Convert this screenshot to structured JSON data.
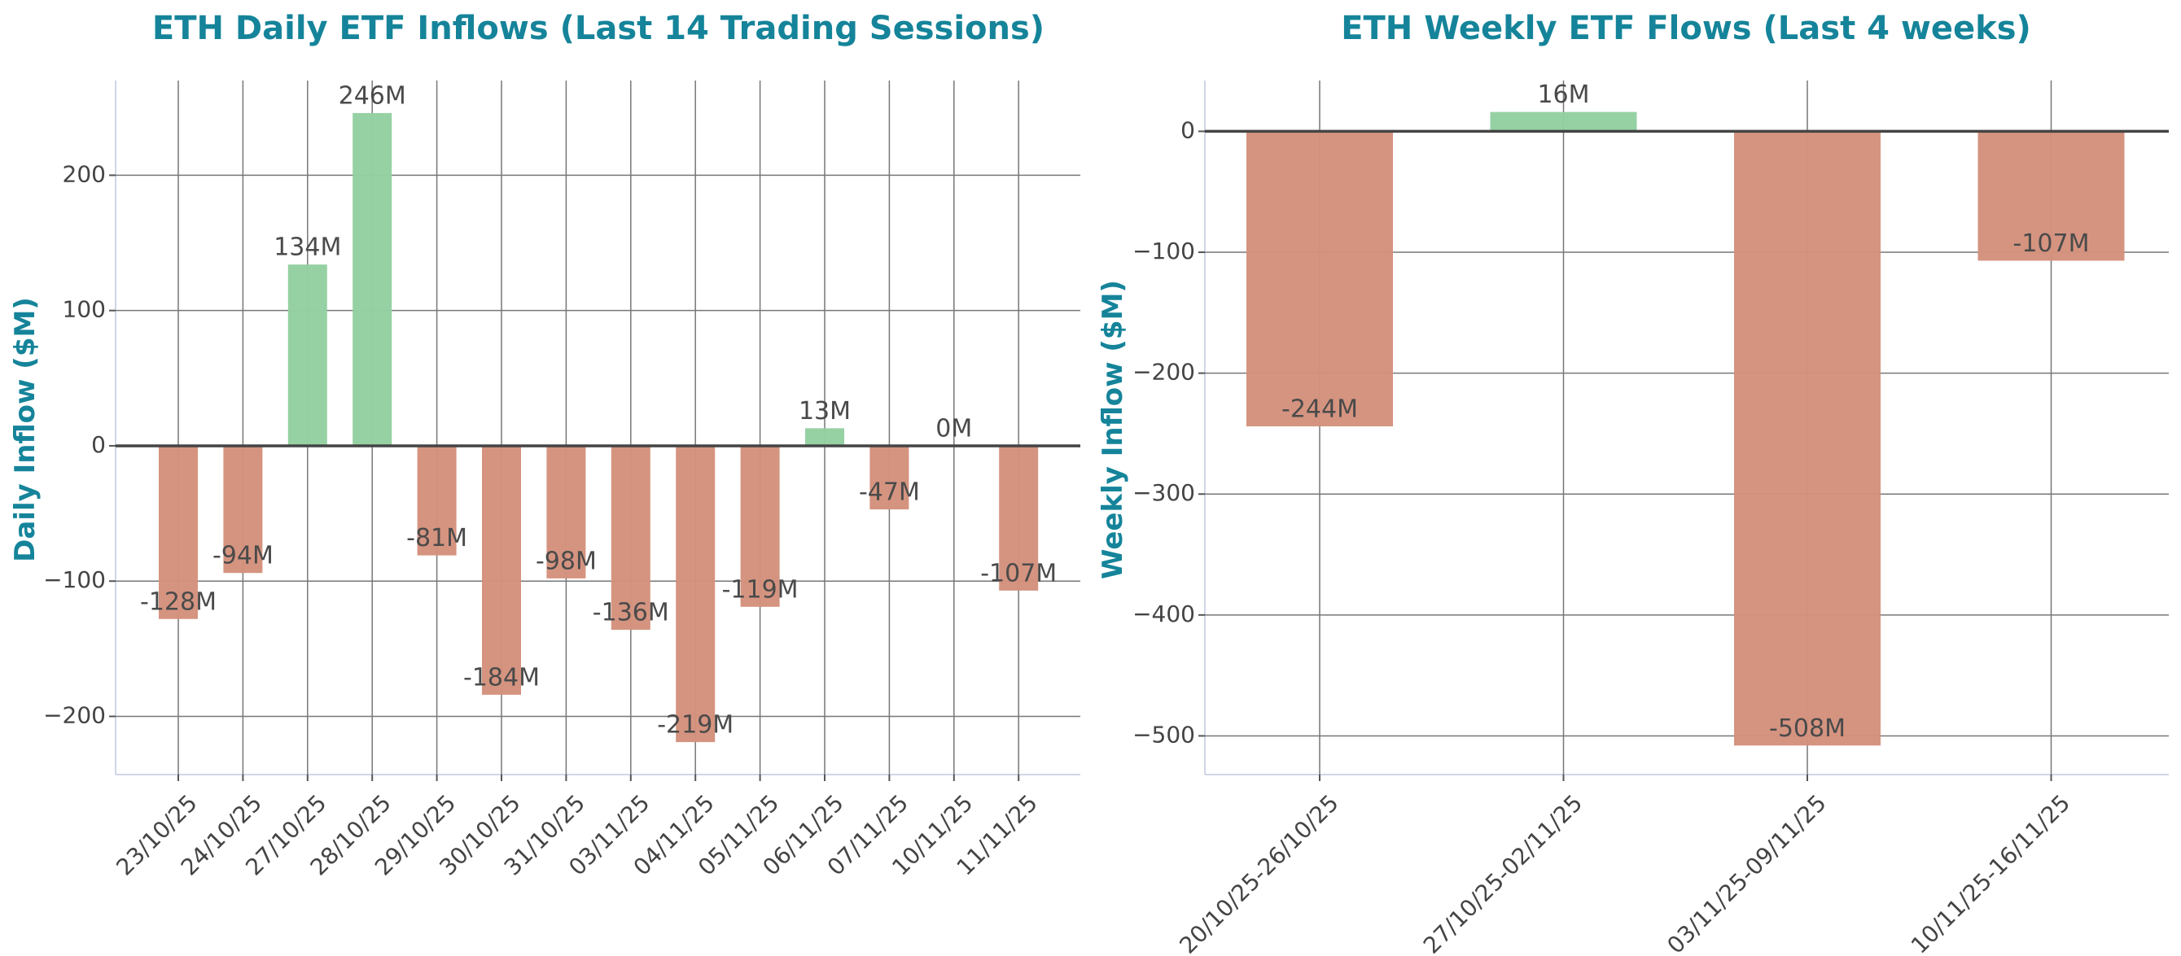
{
  "colors": {
    "title": "#15849a",
    "positive": "#93cfa1",
    "negative": "#d4917c",
    "grid": "#777777",
    "text": "#444444"
  },
  "chart_data": [
    {
      "type": "bar",
      "title": "ETH Daily ETF Inflows (Last 14 Trading Sessions)",
      "xlabel": "",
      "ylabel": "Daily Inflow ($M)",
      "categories": [
        "23/10/25",
        "24/10/25",
        "27/10/25",
        "28/10/25",
        "29/10/25",
        "30/10/25",
        "31/10/25",
        "03/11/25",
        "04/11/25",
        "05/11/25",
        "06/11/25",
        "07/11/25",
        "10/11/25",
        "11/11/25"
      ],
      "values": [
        -128,
        -94,
        134,
        246,
        -81,
        -184,
        -98,
        -136,
        -219,
        -119,
        13,
        -47,
        0,
        -107
      ],
      "data_labels": [
        "-128M",
        "-94M",
        "134M",
        "246M",
        "-81M",
        "-184M",
        "-98M",
        "-136M",
        "-219M",
        "-119M",
        "13M",
        "-47M",
        "0M",
        "-107M"
      ],
      "yticks": [
        -200,
        -100,
        0,
        100,
        200
      ],
      "ytick_labels": [
        "−200",
        "−100",
        "0",
        "100",
        "200"
      ],
      "ylim": [
        -243,
        270
      ],
      "grid": true
    },
    {
      "type": "bar",
      "title": "ETH Weekly ETF Flows (Last 4 weeks)",
      "xlabel": "",
      "ylabel": "Weekly Inflow ($M)",
      "categories": [
        "20/10/25-26/10/25",
        "27/10/25-02/11/25",
        "03/11/25-09/11/25",
        "10/11/25-16/11/25"
      ],
      "values": [
        -244,
        16,
        -508,
        -107
      ],
      "data_labels": [
        "-244M",
        "16M",
        "-508M",
        "-107M"
      ],
      "yticks": [
        -500,
        -400,
        -300,
        -200,
        -100,
        0
      ],
      "ytick_labels": [
        "−500",
        "−400",
        "−300",
        "−200",
        "−100",
        "0"
      ],
      "ylim": [
        -532,
        42
      ],
      "grid": true
    }
  ]
}
